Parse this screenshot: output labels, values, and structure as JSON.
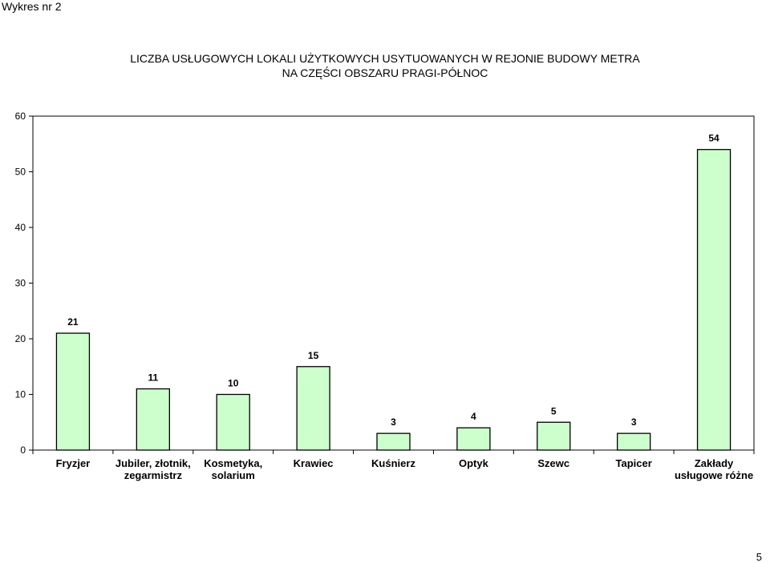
{
  "document_label": "Wykres nr 2",
  "page_number": "5",
  "chart_data": {
    "type": "bar",
    "title": "LICZBA USŁUGOWYCH LOKALI UŻYTKOWYCH USYTUOWANYCH W REJONIE BUDOWY METRA",
    "subtitle": "NA CZĘŚCI OBSZARU PRAGI-PÓŁNOC",
    "categories": [
      [
        "Fryzjer"
      ],
      [
        "Jubiler, złotnik,",
        "zegarmistrz"
      ],
      [
        "Kosmetyka,",
        "solarium"
      ],
      [
        "Krawiec"
      ],
      [
        "Kuśnierz"
      ],
      [
        "Optyk"
      ],
      [
        "Szewc"
      ],
      [
        "Tapicer"
      ],
      [
        "Zakłady",
        "usługowe różne"
      ]
    ],
    "values": [
      21,
      11,
      10,
      15,
      3,
      4,
      5,
      3,
      54
    ],
    "ylim": [
      0,
      60
    ],
    "yticks": [
      "0",
      "10",
      "20",
      "30",
      "40",
      "50",
      "60"
    ],
    "bar_color": "#ccffcc",
    "bar_border": "#000000",
    "grid": false,
    "legend": "none"
  }
}
